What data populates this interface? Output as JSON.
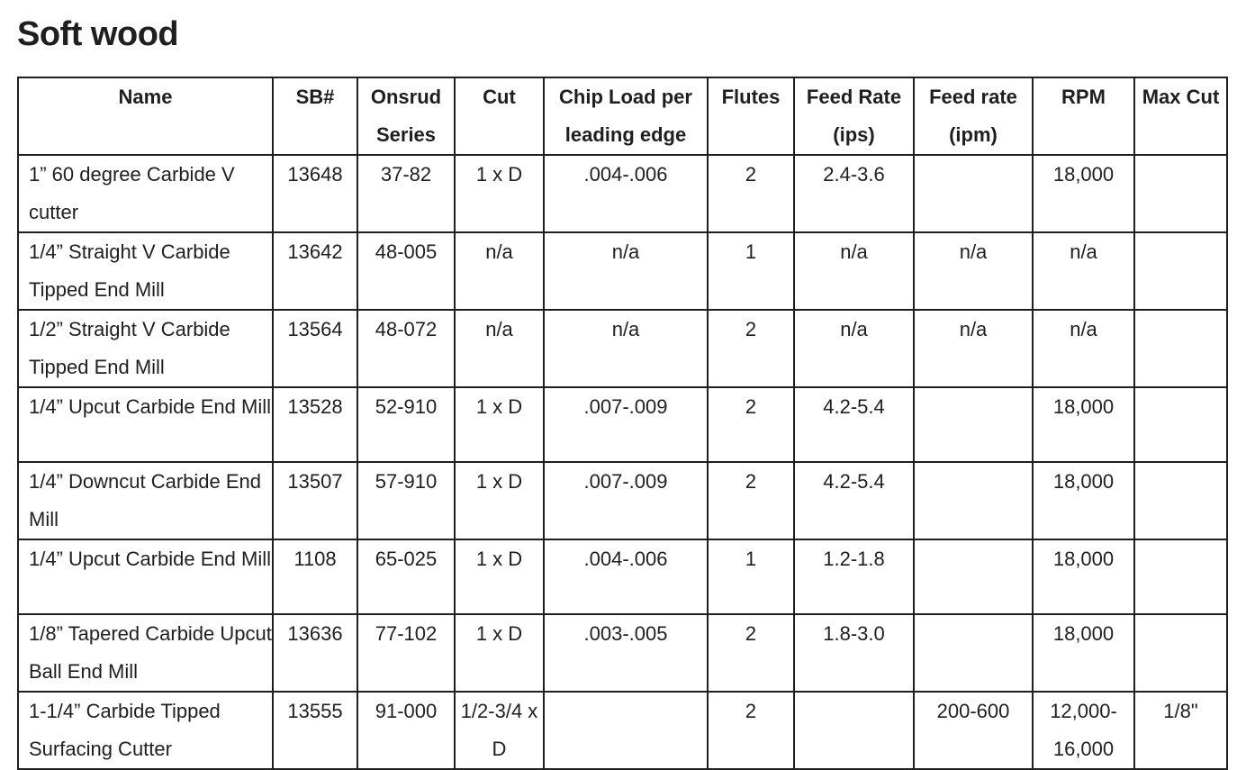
{
  "page": {
    "title": "Soft wood"
  },
  "table": {
    "headers": [
      "Name",
      "SB#",
      "Onsrud Series",
      "Cut",
      "Chip Load per leading edge",
      "Flutes",
      "Feed Rate (ips)",
      "Feed rate (ipm)",
      "RPM",
      "Max Cut"
    ],
    "rows": [
      [
        "1” 60 degree Carbide V cutter",
        "13648",
        "37-82",
        "1 x D",
        ".004-.006",
        "2",
        "2.4-3.6",
        "",
        "18,000",
        ""
      ],
      [
        "1/4” Straight V Carbide Tipped End Mill",
        "13642",
        "48-005",
        "n/a",
        "n/a",
        "1",
        "n/a",
        "n/a",
        "n/a",
        ""
      ],
      [
        "1/2” Straight V Carbide Tipped End Mill",
        "13564",
        "48-072",
        "n/a",
        "n/a",
        "2",
        "n/a",
        "n/a",
        "n/a",
        ""
      ],
      [
        "1/4” Upcut Carbide End Mill",
        "13528",
        "52-910",
        "1 x D",
        ".007-.009",
        "2",
        "4.2-5.4",
        "",
        "18,000",
        ""
      ],
      [
        "1/4” Downcut Carbide End Mill",
        "13507",
        "57-910",
        "1 x D",
        ".007-.009",
        "2",
        "4.2-5.4",
        "",
        "18,000",
        ""
      ],
      [
        "1/4” Upcut Carbide End Mill",
        "1108",
        "65-025",
        "1 x D",
        ".004-.006",
        "1",
        "1.2-1.8",
        "",
        "18,000",
        ""
      ],
      [
        "1/8” Tapered Carbide Upcut Ball End Mill",
        "13636",
        "77-102",
        "1 x D",
        ".003-.005",
        "2",
        "1.8-3.0",
        "",
        "18,000",
        ""
      ],
      [
        "1-1/4” Carbide Tipped Surfacing Cutter",
        "13555",
        "91-000",
        "1/2-3/4 x D",
        "",
        "2",
        "",
        "200-600",
        "12,000-16,000",
        "1/8\""
      ]
    ]
  }
}
